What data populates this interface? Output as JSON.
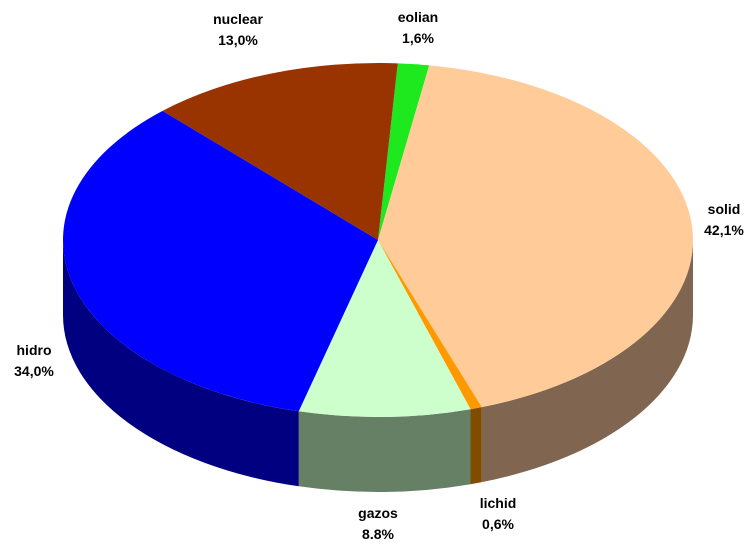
{
  "chart_data": {
    "type": "pie3d",
    "categories": [
      "eolian",
      "solid",
      "lichid",
      "gazos",
      "hidro",
      "nuclear"
    ],
    "values": [
      1.6,
      42.1,
      0.6,
      8.8,
      34.0,
      13.0
    ],
    "value_labels": [
      "1,6%",
      "42,1%",
      "0,6%",
      "8.8%",
      "34,0%",
      "13,0%"
    ],
    "colors": [
      "#1ee81e",
      "#ffcc99",
      "#ff9900",
      "#ccffcc",
      "#0000ff",
      "#993300"
    ],
    "side_colors": [
      "#0f740f",
      "#806650",
      "#804c00",
      "#668066",
      "#000080",
      "#4c1900"
    ]
  }
}
